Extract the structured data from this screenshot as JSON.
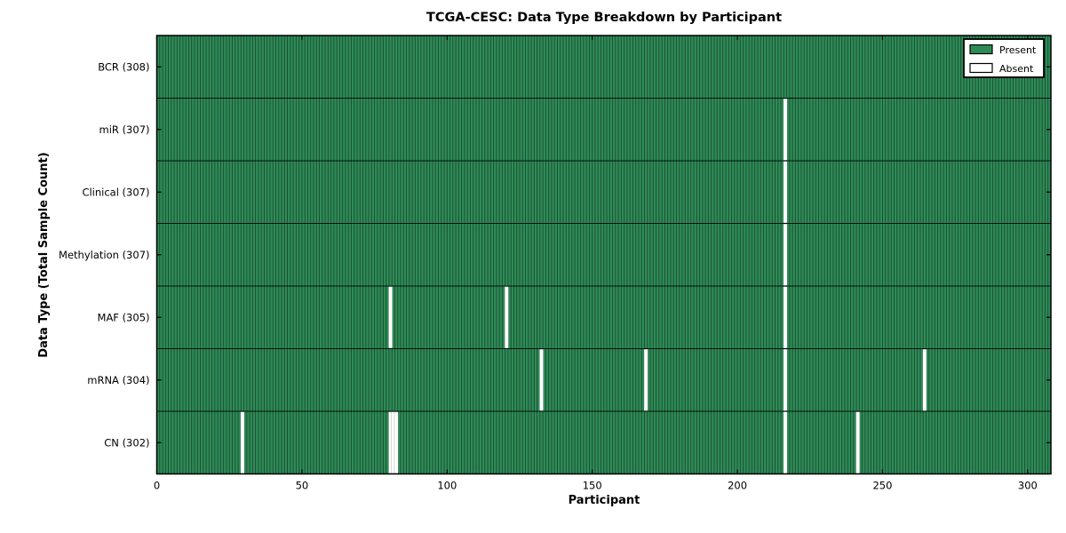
{
  "chart_data": {
    "type": "heatmap",
    "title": "TCGA-CESC: Data Type Breakdown by Participant",
    "xlabel": "Participant",
    "ylabel": "Data Type (Total Sample Count)",
    "n_participants": 308,
    "xlim": [
      0,
      308
    ],
    "x_ticks": [
      0,
      50,
      100,
      150,
      200,
      250,
      300
    ],
    "grid": false,
    "legend_position": "upper right",
    "rows": [
      {
        "label": "BCR (308)",
        "data_type": "BCR",
        "present_count": 308,
        "absent_participants": []
      },
      {
        "label": "miR (307)",
        "data_type": "miR",
        "present_count": 307,
        "absent_participants": [
          216
        ]
      },
      {
        "label": "Clinical (307)",
        "data_type": "Clinical",
        "present_count": 307,
        "absent_participants": [
          216
        ]
      },
      {
        "label": "Methylation (307)",
        "data_type": "Methylation",
        "present_count": 307,
        "absent_participants": [
          216
        ]
      },
      {
        "label": "MAF (305)",
        "data_type": "MAF",
        "present_count": 305,
        "absent_participants": [
          80,
          120,
          216
        ]
      },
      {
        "label": "mRNA (304)",
        "data_type": "mRNA",
        "present_count": 304,
        "absent_participants": [
          132,
          168,
          216,
          264
        ]
      },
      {
        "label": "CN (302)",
        "data_type": "CN",
        "present_count": 302,
        "absent_participants": [
          29,
          80,
          81,
          82,
          216,
          241
        ]
      }
    ],
    "legend": [
      {
        "label": "Present",
        "color": "#2e8b57"
      },
      {
        "label": "Absent",
        "color": "#ffffff"
      }
    ],
    "colors": {
      "present": "#2e8b57",
      "absent": "#ffffff",
      "bar_edge": "#000000",
      "axis": "#000000",
      "text": "#000000",
      "background": "#ffffff"
    }
  }
}
